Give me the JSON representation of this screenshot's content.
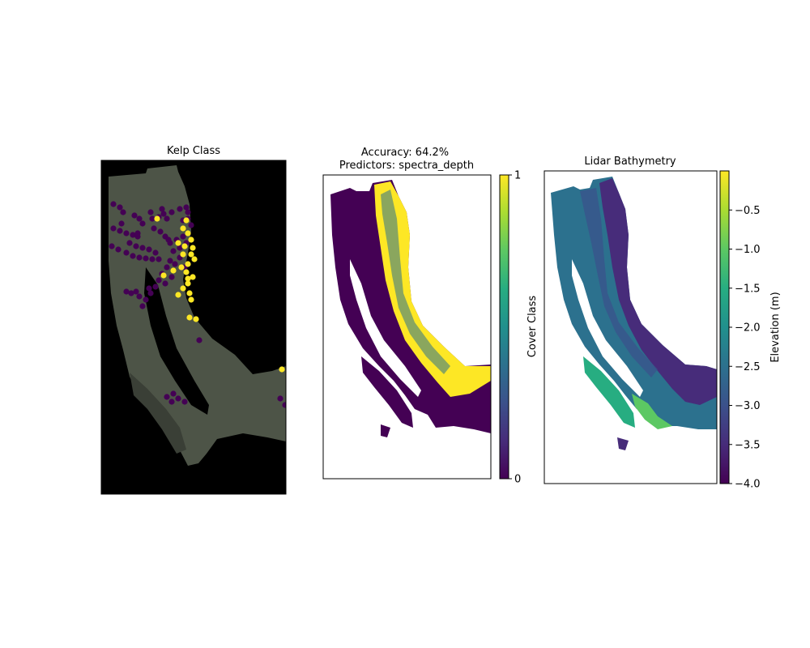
{
  "chart_data": [
    {
      "type": "scatter",
      "title": "Kelp Class",
      "background": "RGB image",
      "legend": "none",
      "grid": false,
      "colors": {
        "class_0": "#440154",
        "class_1": "#fde725"
      },
      "series": [
        {
          "name": "",
          "values": [
            0,
            1
          ]
        }
      ]
    },
    {
      "type": "heatmap",
      "title_lines": [
        "Accuracy: 64.2%",
        "Predictors: spectra_depth"
      ],
      "grid": false,
      "colorbar": {
        "label": "Cover Class",
        "min": 0,
        "max": 1,
        "ticks": [
          "0",
          "1"
        ],
        "colormap": "viridis"
      }
    },
    {
      "type": "heatmap",
      "title": "Lidar Bathymetry",
      "grid": false,
      "colorbar": {
        "label": "Elevation (m)",
        "min": -4.0,
        "max": 0.0,
        "ticks": [
          "−0.5",
          "−1.0",
          "−1.5",
          "−2.0",
          "−2.5",
          "−3.0",
          "−3.5",
          "−4.0"
        ],
        "tick_values": [
          -0.5,
          -1.0,
          -1.5,
          -2.0,
          -2.5,
          -3.0,
          -3.5,
          -4.0
        ],
        "colormap": "viridis"
      }
    }
  ]
}
